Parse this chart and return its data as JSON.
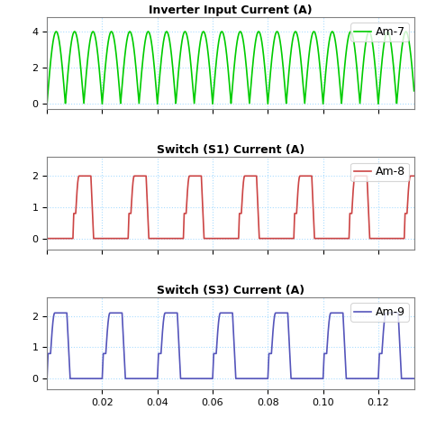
{
  "title1": "Inverter Input Current (A)",
  "title2": "Switch (S1) Current (A)",
  "title3": "Switch (S3) Current (A)",
  "legend1": "Am-7",
  "legend2": "Am-8",
  "legend3": "Am-9",
  "color1": "#00cc00",
  "color2": "#cc4444",
  "color3": "#5555bb",
  "xlim": [
    0,
    0.133
  ],
  "xticks": [
    0.02,
    0.04,
    0.06,
    0.08,
    0.1,
    0.12
  ],
  "ylim1": [
    -0.3,
    4.8
  ],
  "yticks1": [
    0,
    2,
    4
  ],
  "ylim2": [
    -0.35,
    2.6
  ],
  "yticks2": [
    0,
    1,
    2
  ],
  "ylim3": [
    -0.35,
    2.6
  ],
  "yticks3": [
    0,
    1,
    2
  ],
  "T": 0.133,
  "dt": 5e-05
}
